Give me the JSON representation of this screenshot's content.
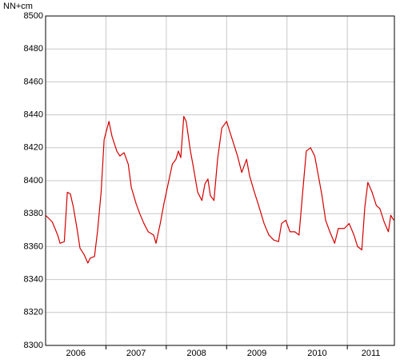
{
  "chart_data": {
    "type": "line",
    "ylabel": "NN+cm",
    "x": [
      2006.0,
      2006.11,
      2006.2,
      2006.24,
      2006.31,
      2006.36,
      2006.41,
      2006.46,
      2006.52,
      2006.57,
      2006.64,
      2006.7,
      2006.74,
      2006.81,
      2006.86,
      2006.92,
      2006.97,
      2007.05,
      2007.1,
      2007.18,
      2007.23,
      2007.3,
      2007.37,
      2007.42,
      2007.5,
      2007.56,
      2007.63,
      2007.7,
      2007.79,
      2007.83,
      2007.9,
      2007.96,
      2008.03,
      2008.1,
      2008.16,
      2008.2,
      2008.24,
      2008.29,
      2008.33,
      2008.4,
      2008.45,
      2008.52,
      2008.59,
      2008.64,
      2008.69,
      2008.73,
      2008.79,
      2008.85,
      2008.92,
      2009.0,
      2009.05,
      2009.12,
      2009.18,
      2009.25,
      2009.33,
      2009.38,
      2009.46,
      2009.53,
      2009.62,
      2009.7,
      2009.78,
      2009.86,
      2009.91,
      2009.98,
      2010.05,
      2010.13,
      2010.2,
      2010.26,
      2010.32,
      2010.39,
      2010.46,
      2010.52,
      2010.58,
      2010.64,
      2010.71,
      2010.79,
      2010.85,
      2010.95,
      2011.03,
      2011.11,
      2011.17,
      2011.24,
      2011.29,
      2011.34,
      2011.41,
      2011.48,
      2011.54,
      2011.61,
      2011.68,
      2011.72,
      2011.77
    ],
    "series": [
      {
        "color": "#d40000",
        "values": [
          8379,
          8375,
          8367,
          8362,
          8363,
          8393,
          8392,
          8384,
          8371,
          8359,
          8355,
          8350,
          8353,
          8354,
          8369,
          8393,
          8425,
          8436,
          8427,
          8418,
          8415,
          8417,
          8410,
          8396,
          8386,
          8380,
          8374,
          8369,
          8367,
          8362,
          8374,
          8386,
          8398,
          8410,
          8413,
          8418,
          8414,
          8439,
          8436,
          8418,
          8408,
          8393,
          8388,
          8398,
          8401,
          8391,
          8388,
          8413,
          8432,
          8436,
          8430,
          8422,
          8415,
          8405,
          8413,
          8403,
          8393,
          8385,
          8374,
          8367,
          8364,
          8363,
          8374,
          8376,
          8369,
          8369,
          8367,
          8393,
          8418,
          8420,
          8415,
          8403,
          8391,
          8376,
          8369,
          8362,
          8371,
          8371,
          8374,
          8367,
          8360,
          8358,
          8384,
          8399,
          8393,
          8385,
          8383,
          8375,
          8369,
          8379,
          8376
        ]
      }
    ],
    "xlim": [
      2006.0,
      2011.78
    ],
    "xticks": [
      2007,
      2008,
      2009,
      2010,
      2011
    ],
    "year_labels": [
      2006,
      2007,
      2008,
      2009,
      2010,
      2011
    ],
    "ylim": [
      8300,
      8500
    ],
    "yticks": [
      8300,
      8320,
      8340,
      8360,
      8380,
      8400,
      8420,
      8440,
      8460,
      8480,
      8500
    ],
    "grid": true
  }
}
